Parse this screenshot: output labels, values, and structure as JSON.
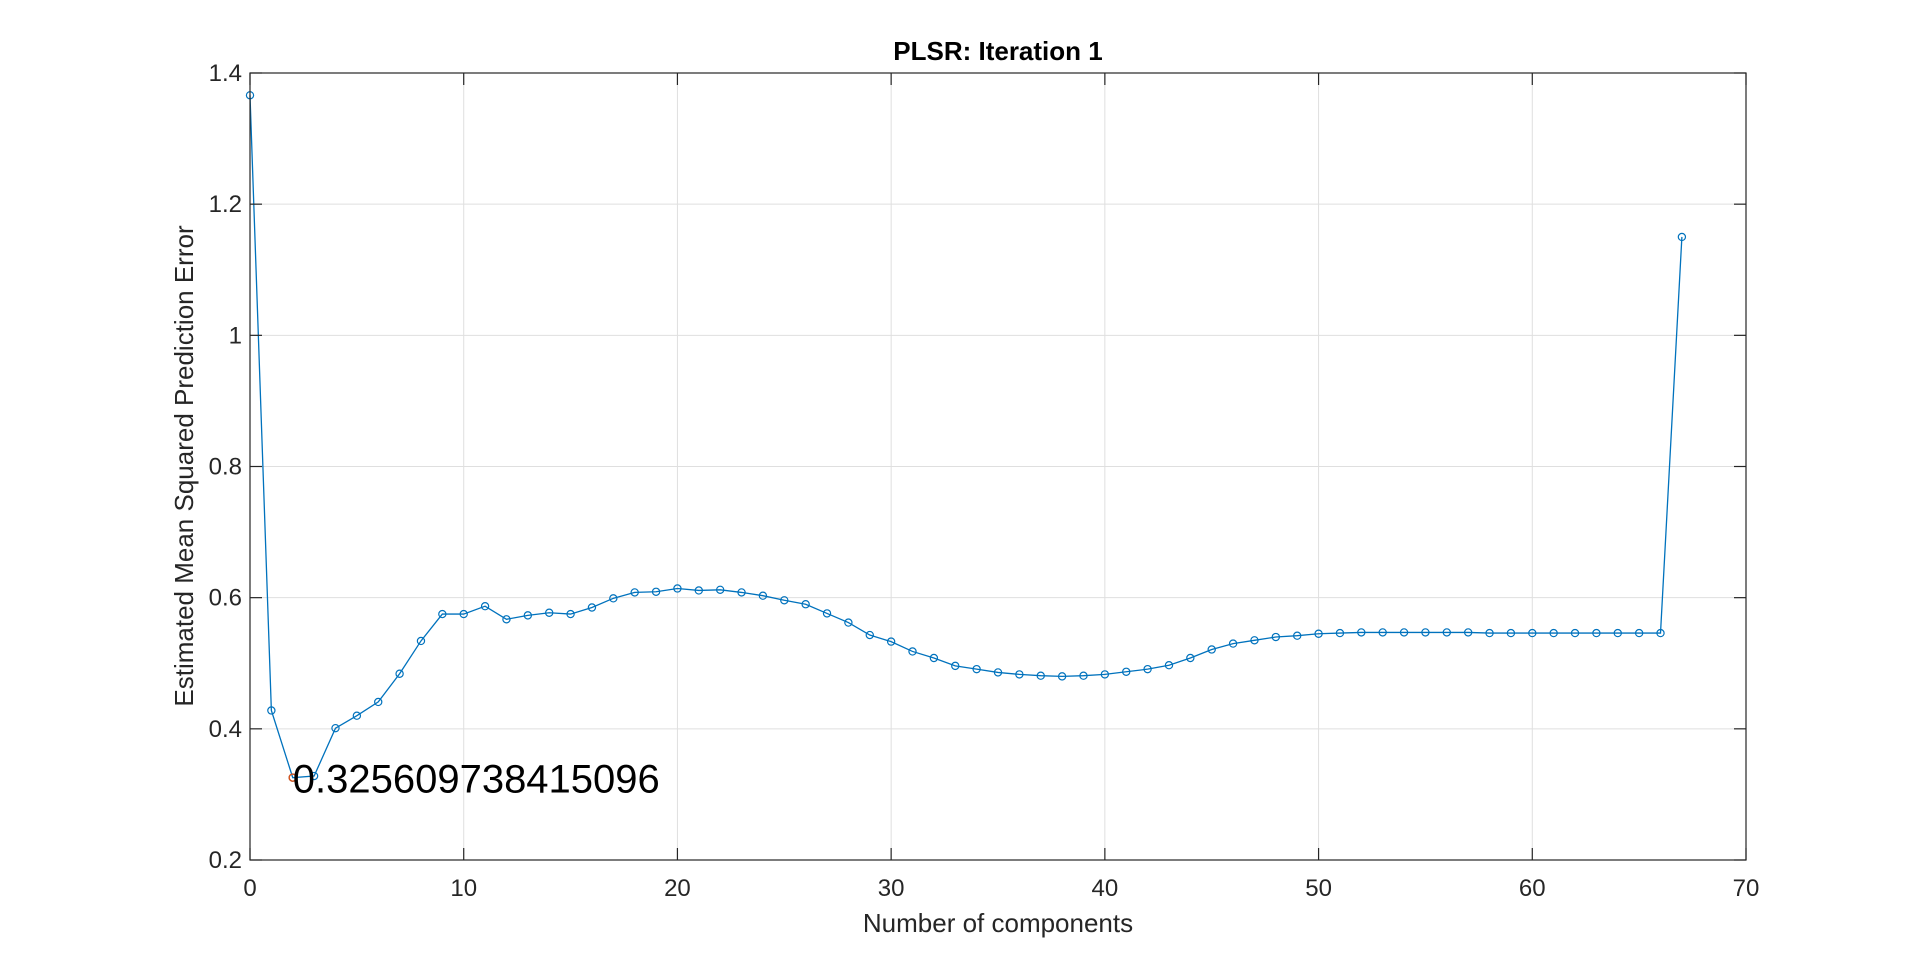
{
  "chart_data": {
    "type": "line",
    "title": "PLSR: Iteration 1",
    "xlabel": "Number of components",
    "ylabel": "Estimated Mean Squared Prediction Error",
    "xlim": [
      0,
      70
    ],
    "ylim": [
      0.2,
      1.4
    ],
    "xticks": [
      0,
      10,
      20,
      30,
      40,
      50,
      60,
      70
    ],
    "yticks": [
      0.2,
      0.4,
      0.6,
      0.8,
      1,
      1.2,
      1.4
    ],
    "xtick_labels": [
      "0",
      "10",
      "20",
      "30",
      "40",
      "50",
      "60",
      "70"
    ],
    "ytick_labels": [
      "0.2",
      "0.4",
      "0.6",
      "0.8",
      "1",
      "1.2",
      "1.4"
    ],
    "grid": true,
    "series": [
      {
        "color": "#0072bd",
        "marker": "circle",
        "x": [
          0,
          1,
          2,
          3,
          4,
          5,
          6,
          7,
          8,
          9,
          10,
          11,
          12,
          13,
          14,
          15,
          16,
          17,
          18,
          19,
          20,
          21,
          22,
          23,
          24,
          25,
          26,
          27,
          28,
          29,
          30,
          31,
          32,
          33,
          34,
          35,
          36,
          37,
          38,
          39,
          40,
          41,
          42,
          43,
          44,
          45,
          46,
          47,
          48,
          49,
          50,
          51,
          52,
          53,
          54,
          55,
          56,
          57,
          58,
          59,
          60,
          61,
          62,
          63,
          64,
          65,
          66,
          67
        ],
        "y": [
          1.366,
          0.428,
          0.3256,
          0.328,
          0.401,
          0.42,
          0.441,
          0.484,
          0.534,
          0.575,
          0.575,
          0.587,
          0.567,
          0.573,
          0.577,
          0.575,
          0.585,
          0.599,
          0.608,
          0.609,
          0.614,
          0.611,
          0.612,
          0.608,
          0.603,
          0.596,
          0.59,
          0.576,
          0.562,
          0.543,
          0.533,
          0.518,
          0.508,
          0.496,
          0.491,
          0.486,
          0.483,
          0.481,
          0.48,
          0.481,
          0.483,
          0.487,
          0.491,
          0.497,
          0.508,
          0.521,
          0.53,
          0.535,
          0.54,
          0.542,
          0.545,
          0.546,
          0.547,
          0.547,
          0.547,
          0.547,
          0.547,
          0.547,
          0.546,
          0.546,
          0.546,
          0.546,
          0.546,
          0.546,
          0.546,
          0.546,
          0.546,
          1.15
        ]
      }
    ],
    "highlight": {
      "x": 2,
      "y": 0.325609738415096,
      "color": "#d95319",
      "label": "0.325609738415096"
    }
  }
}
